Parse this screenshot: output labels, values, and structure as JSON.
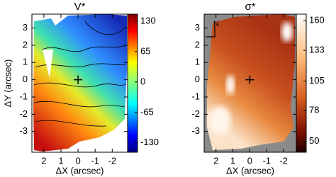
{
  "chart_data": [
    {
      "type": "heatmap",
      "title": "V*",
      "xlabel": "ΔX (arcsec)",
      "ylabel": "ΔY (arcsec)",
      "xlim": [
        2.7,
        -2.9
      ],
      "ylim": [
        -4.2,
        3.8
      ],
      "xticks": [
        2,
        1,
        0,
        -1,
        -2
      ],
      "yticks": [
        3,
        2,
        1,
        0,
        -1,
        -2,
        -3
      ],
      "colorbar": {
        "colormap": "jet",
        "lim": [
          -150,
          145
        ],
        "ticks": [
          130,
          65,
          0,
          -65,
          -130
        ]
      }
    },
    {
      "type": "heatmap",
      "title": "σ*",
      "xlabel": "ΔX (arcsec)",
      "compass": "N",
      "xlim": [
        2.7,
        -2.75
      ],
      "ylim": [
        -4.2,
        3.8
      ],
      "xticks": [
        2,
        1,
        0,
        -1,
        -2
      ],
      "yticks": [
        3,
        2,
        1,
        0,
        -1,
        -2,
        -3
      ],
      "colorbar": {
        "colormap": "heat",
        "lim": [
          40,
          166
        ],
        "ticks": [
          160,
          133,
          105,
          78,
          50
        ]
      }
    }
  ]
}
